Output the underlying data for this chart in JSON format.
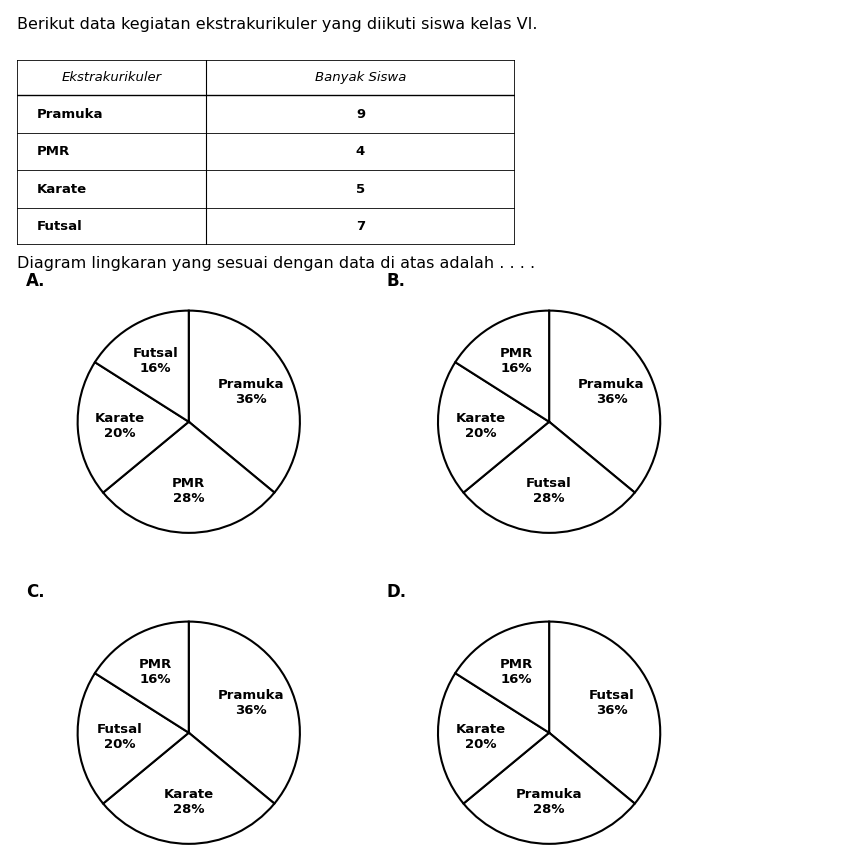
{
  "title_text": "Berikut data kegiatan ekstrakurikuler yang diikuti siswa kelas VI.",
  "table_headers": [
    "Ekstrakurikuler",
    "Banyak Siswa"
  ],
  "table_rows": [
    [
      "Pramuka",
      "9"
    ],
    [
      "PMR",
      "4"
    ],
    [
      "Karate",
      "5"
    ],
    [
      "Futsal",
      "7"
    ]
  ],
  "question_text": "Diagram lingkaran yang sesuai dengan data di atas adalah . . . .",
  "background_color": "#ffffff",
  "pie_edge_color": "#000000",
  "pie_face_color": "#ffffff",
  "pie_linewidth": 1.5,
  "label_fontsize": 9.5,
  "label_fontweight": "bold",
  "charts": [
    {
      "label": "A.",
      "slices": [
        {
          "name": "Pramuka",
          "pct": "36%",
          "value": 36
        },
        {
          "name": "PMR",
          "pct": "28%",
          "value": 28
        },
        {
          "name": "Karate",
          "pct": "20%",
          "value": 20
        },
        {
          "name": "Futsal",
          "pct": "16%",
          "value": 16
        }
      ],
      "startangle": 90
    },
    {
      "label": "B.",
      "slices": [
        {
          "name": "Pramuka",
          "pct": "36%",
          "value": 36
        },
        {
          "name": "Futsal",
          "pct": "28%",
          "value": 28
        },
        {
          "name": "Karate",
          "pct": "20%",
          "value": 20
        },
        {
          "name": "PMR",
          "pct": "16%",
          "value": 16
        }
      ],
      "startangle": 90
    },
    {
      "label": "C.",
      "slices": [
        {
          "name": "Pramuka",
          "pct": "36%",
          "value": 36
        },
        {
          "name": "Karate",
          "pct": "28%",
          "value": 28
        },
        {
          "name": "Futsal",
          "pct": "20%",
          "value": 20
        },
        {
          "name": "PMR",
          "pct": "16%",
          "value": 16
        }
      ],
      "startangle": 90
    },
    {
      "label": "D.",
      "slices": [
        {
          "name": "Futsal",
          "pct": "36%",
          "value": 36
        },
        {
          "name": "Pramuka",
          "pct": "28%",
          "value": 28
        },
        {
          "name": "Karate",
          "pct": "20%",
          "value": 20
        },
        {
          "name": "PMR",
          "pct": "16%",
          "value": 16
        }
      ],
      "startangle": 90
    }
  ]
}
